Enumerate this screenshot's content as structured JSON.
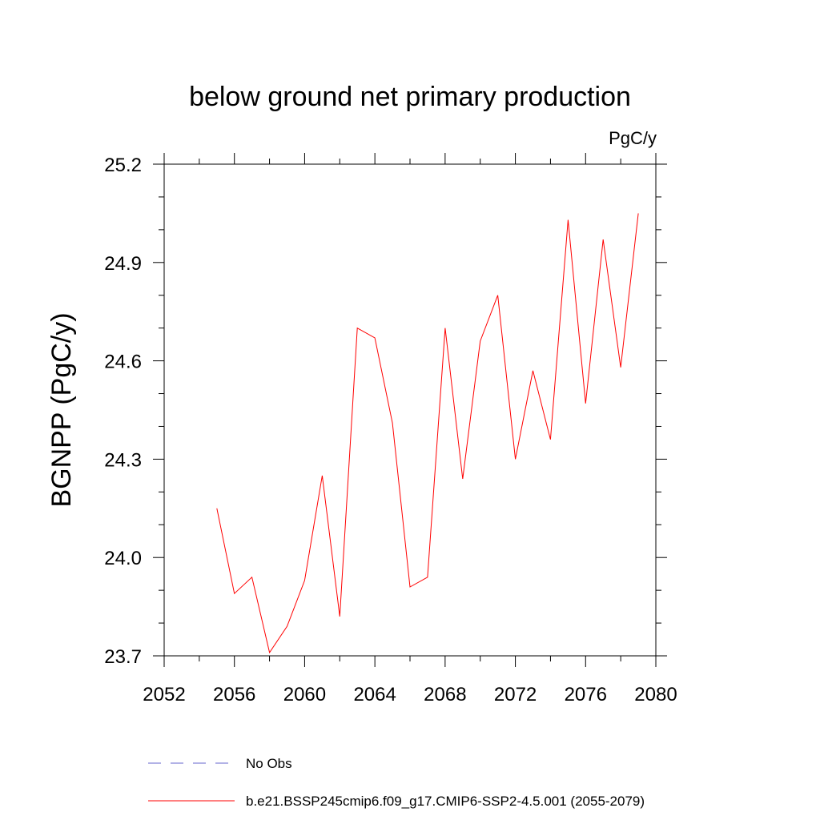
{
  "chart_data": {
    "type": "line",
    "title": "below ground net primary production",
    "units": "PgC/y",
    "ylabel": "BGNPP  (PgC/y)",
    "xlabel": "",
    "xlim": [
      2052,
      2080
    ],
    "ylim": [
      23.7,
      25.2
    ],
    "x_major_ticks": [
      2052,
      2056,
      2060,
      2064,
      2068,
      2072,
      2076,
      2080
    ],
    "x_minor_ticks": [
      2054,
      2058,
      2062,
      2066,
      2070,
      2074,
      2078
    ],
    "y_major_ticks": [
      23.7,
      24.0,
      24.3,
      24.6,
      24.9,
      25.2
    ],
    "y_major_tick_labels": [
      "23.7",
      "24.0",
      "24.3",
      "24.6",
      "24.9",
      "25.2"
    ],
    "y_minor_ticks": [
      23.8,
      23.9,
      24.1,
      24.2,
      24.4,
      24.5,
      24.7,
      24.8,
      25.0,
      25.1
    ],
    "grid": false,
    "legend_position": "bottom",
    "series": [
      {
        "name": "b.e21.BSSP245cmip6.f09_g17.CMIP6-SSP2-4.5.001 (2055-2079)",
        "color": "#ff0000",
        "style": "solid",
        "x": [
          2055,
          2056,
          2057,
          2058,
          2059,
          2060,
          2061,
          2062,
          2063,
          2064,
          2065,
          2066,
          2067,
          2068,
          2069,
          2070,
          2071,
          2072,
          2073,
          2074,
          2075,
          2076,
          2077,
          2078,
          2079
        ],
        "values": [
          24.15,
          23.89,
          23.94,
          23.71,
          23.79,
          23.93,
          24.25,
          23.82,
          24.7,
          24.67,
          24.41,
          23.91,
          23.94,
          24.7,
          24.24,
          24.66,
          24.8,
          24.3,
          24.57,
          24.36,
          25.03,
          24.47,
          24.97,
          24.58,
          25.05
        ]
      }
    ],
    "legend": [
      {
        "label": "No Obs",
        "color": "#6666cc",
        "style": "dashed"
      },
      {
        "label": "b.e21.BSSP245cmip6.f09_g17.CMIP6-SSP2-4.5.001 (2055-2079)",
        "color": "#ff0000",
        "style": "solid"
      }
    ]
  }
}
